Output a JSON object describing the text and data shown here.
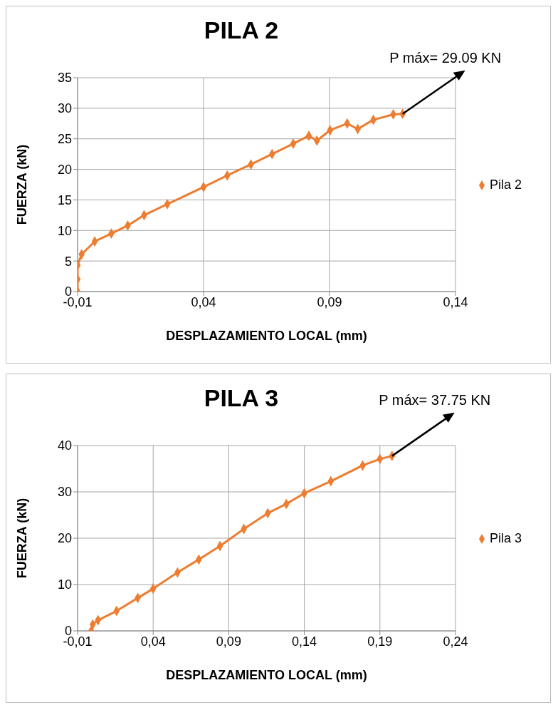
{
  "chart_data": [
    {
      "type": "line",
      "title": "PILA 2",
      "xlabel": "DESPLAZAMIENTO LOCAL (mm)",
      "ylabel": "FUERZA (kN)",
      "xlim": [
        -0.01,
        0.14
      ],
      "xticks": [
        {
          "value": -0.01,
          "label": "-0,01"
        },
        {
          "value": 0.04,
          "label": "0,04"
        },
        {
          "value": 0.09,
          "label": "0,09"
        },
        {
          "value": 0.14,
          "label": "0,14"
        }
      ],
      "ylim": [
        0,
        35
      ],
      "yticks": [
        0,
        5,
        10,
        15,
        20,
        25,
        30,
        35
      ],
      "grid": true,
      "legend": "right",
      "marker": "diamond",
      "line_style": "solid",
      "annotations": [
        {
          "text": "P máx= 29.09 KN",
          "x": 0.119,
          "y": 29.09
        }
      ],
      "series": [
        {
          "name": "Pila 2",
          "color": "#ed7d31",
          "x": [
            -0.01,
            -0.01,
            -0.01,
            -0.0084,
            -0.0032,
            0.0034,
            0.0099,
            0.0164,
            0.0256,
            0.04,
            0.0494,
            0.0588,
            0.0672,
            0.0756,
            0.0818,
            0.085,
            0.0902,
            0.097,
            0.1012,
            0.1074,
            0.1153,
            0.119
          ],
          "values": [
            0,
            2,
            4.3,
            6.1,
            8.2,
            9.5,
            10.8,
            12.5,
            14.3,
            17.1,
            19,
            20.8,
            22.5,
            24.2,
            25.5,
            24.7,
            26.4,
            27.5,
            26.6,
            28.1,
            29,
            29.09
          ]
        }
      ]
    },
    {
      "type": "line",
      "title": "PILA 3",
      "xlabel": "DESPLAZAMIENTO LOCAL (mm)",
      "ylabel": "FUERZA (kN)",
      "xlim": [
        -0.01,
        0.24
      ],
      "xticks": [
        {
          "value": -0.01,
          "label": "-0,01"
        },
        {
          "value": 0.04,
          "label": "0,04"
        },
        {
          "value": 0.09,
          "label": "0,09"
        },
        {
          "value": 0.14,
          "label": "0,14"
        },
        {
          "value": 0.19,
          "label": "0,19"
        },
        {
          "value": 0.24,
          "label": "0,24"
        }
      ],
      "ylim": [
        0,
        40
      ],
      "yticks": [
        0,
        10,
        20,
        30,
        40
      ],
      "grid": true,
      "legend": "right",
      "marker": "diamond",
      "line_style": "solid",
      "annotations": [
        {
          "text": "P máx= 37.75 KN",
          "x": 0.198,
          "y": 37.75
        }
      ],
      "series": [
        {
          "name": "Pila 3",
          "color": "#ed7d31",
          "x": [
            -0.001,
            0,
            0.0035,
            0.0158,
            0.0298,
            0.04,
            0.0561,
            0.0702,
            0.0842,
            0.1,
            0.1158,
            0.1281,
            0.14,
            0.1575,
            0.1786,
            0.19,
            0.198
          ],
          "values": [
            0,
            1.4,
            2.3,
            4.3,
            7.1,
            9.1,
            12.6,
            15.4,
            18.3,
            22,
            25.4,
            27.4,
            29.7,
            32.3,
            35.7,
            37.1,
            37.75
          ]
        }
      ]
    }
  ]
}
